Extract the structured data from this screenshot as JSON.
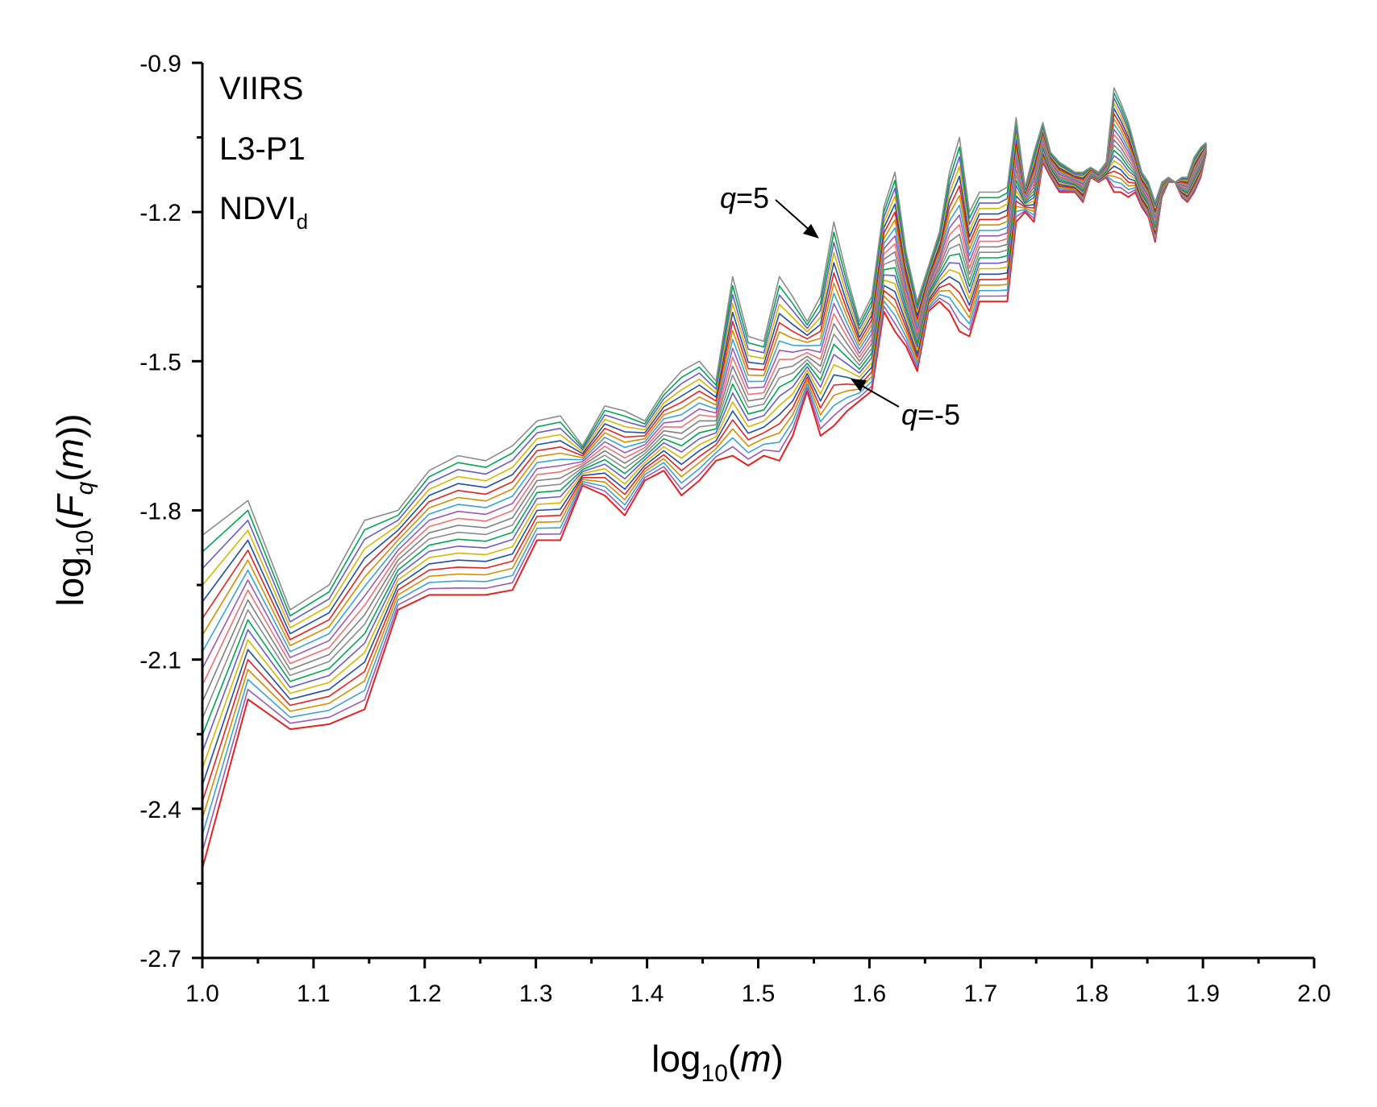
{
  "chart_data": {
    "type": "line",
    "xlabel": "log10(m)",
    "ylabel": "log10(Fq(m))",
    "xlim": [
      1.0,
      2.0
    ],
    "ylim": [
      -2.7,
      -0.9
    ],
    "x_ticks": [
      "1.0",
      "1.1",
      "1.2",
      "1.3",
      "1.4",
      "1.5",
      "1.6",
      "1.7",
      "1.8",
      "1.9",
      "2.0"
    ],
    "y_ticks": [
      "-0.9",
      "-1.2",
      "-1.5",
      "-1.8",
      "-2.1",
      "-2.4",
      "-2.7"
    ],
    "annotation_lines": [
      "VIIRS",
      "L3-P1",
      "NDVI"
    ],
    "annotation_subscript": "d",
    "q_max_label": {
      "var": "q",
      "rest": "=5"
    },
    "q_min_label": {
      "var": "q",
      "rest": "=-5"
    },
    "q_values": [
      5,
      4.5,
      4,
      3.5,
      3,
      2.5,
      2,
      1.5,
      1,
      0.5,
      0,
      -0.5,
      -1,
      -1.5,
      -2,
      -2.5,
      -3,
      -3.5,
      -4,
      -4.5,
      -5
    ],
    "palette": [
      "#8c8c8c",
      "#00a651",
      "#6a5acd",
      "#d4b800",
      "#1f4fa8",
      "#e52222",
      "#d48e00",
      "#3aa3d4",
      "#9b59b6",
      "#f07070",
      "#7f7f7f"
    ],
    "x": [
      1.0,
      1.041,
      1.079,
      1.114,
      1.146,
      1.176,
      1.204,
      1.23,
      1.255,
      1.279,
      1.301,
      1.322,
      1.342,
      1.362,
      1.38,
      1.398,
      1.415,
      1.431,
      1.447,
      1.462,
      1.477,
      1.491,
      1.505,
      1.519,
      1.531,
      1.544,
      1.556,
      1.568,
      1.58,
      1.591,
      1.602,
      1.613,
      1.623,
      1.633,
      1.643,
      1.653,
      1.663,
      1.672,
      1.681,
      1.69,
      1.699,
      1.708,
      1.716,
      1.724,
      1.732,
      1.74,
      1.748,
      1.756,
      1.763,
      1.771,
      1.778,
      1.785,
      1.792,
      1.799,
      1.806,
      1.813,
      1.82,
      1.826,
      1.833,
      1.839,
      1.845,
      1.851,
      1.857,
      1.863,
      1.869,
      1.875,
      1.881,
      1.886,
      1.892,
      1.898,
      1.903
    ],
    "series_top_q5": [
      -1.85,
      -1.78,
      -2.0,
      -1.95,
      -1.82,
      -1.8,
      -1.72,
      -1.69,
      -1.7,
      -1.67,
      -1.62,
      -1.61,
      -1.67,
      -1.59,
      -1.6,
      -1.62,
      -1.56,
      -1.52,
      -1.5,
      -1.54,
      -1.33,
      -1.45,
      -1.46,
      -1.33,
      -1.37,
      -1.42,
      -1.37,
      -1.22,
      -1.33,
      -1.42,
      -1.37,
      -1.19,
      -1.12,
      -1.28,
      -1.38,
      -1.31,
      -1.24,
      -1.12,
      -1.05,
      -1.2,
      -1.16,
      -1.16,
      -1.16,
      -1.15,
      -1.01,
      -1.15,
      -1.08,
      -1.02,
      -1.08,
      -1.1,
      -1.11,
      -1.12,
      -1.12,
      -1.11,
      -1.12,
      -1.1,
      -0.95,
      -0.98,
      -1.02,
      -1.07,
      -1.12,
      -1.14,
      -1.18,
      -1.14,
      -1.13,
      -1.14,
      -1.13,
      -1.13,
      -1.09,
      -1.07,
      -1.06
    ],
    "series_bottom_qm5": [
      -2.52,
      -2.18,
      -2.24,
      -2.23,
      -2.2,
      -2.0,
      -1.97,
      -1.97,
      -1.97,
      -1.96,
      -1.86,
      -1.86,
      -1.75,
      -1.77,
      -1.81,
      -1.74,
      -1.72,
      -1.77,
      -1.74,
      -1.7,
      -1.69,
      -1.71,
      -1.69,
      -1.7,
      -1.65,
      -1.56,
      -1.65,
      -1.63,
      -1.6,
      -1.58,
      -1.56,
      -1.4,
      -1.44,
      -1.47,
      -1.52,
      -1.4,
      -1.38,
      -1.4,
      -1.44,
      -1.45,
      -1.38,
      -1.38,
      -1.38,
      -1.38,
      -1.22,
      -1.2,
      -1.22,
      -1.1,
      -1.13,
      -1.16,
      -1.16,
      -1.16,
      -1.18,
      -1.13,
      -1.14,
      -1.13,
      -1.16,
      -1.16,
      -1.17,
      -1.16,
      -1.19,
      -1.21,
      -1.26,
      -1.17,
      -1.14,
      -1.14,
      -1.17,
      -1.18,
      -1.16,
      -1.13,
      -1.08
    ]
  }
}
